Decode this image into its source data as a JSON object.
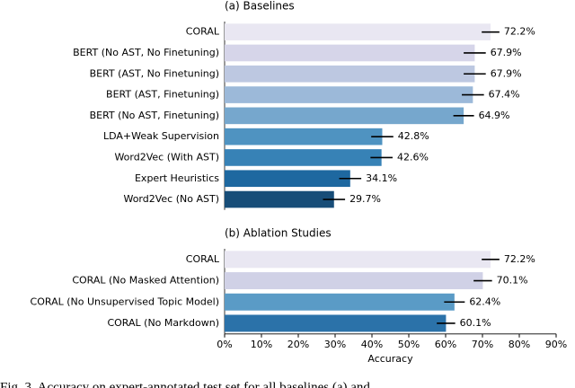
{
  "chart_data": [
    {
      "type": "hbar",
      "title": "(a) Baselines",
      "categories": [
        "CORAL",
        "BERT (No AST, No Finetuning)",
        "BERT (AST, No Finetuning)",
        "BERT (AST, Finetuning)",
        "BERT (No AST, Finetuning)",
        "LDA+Weak Supervision",
        "Word2Vec (With AST)",
        "Expert Heuristics",
        "Word2Vec (No AST)"
      ],
      "values": [
        72.2,
        67.9,
        67.9,
        67.4,
        64.9,
        42.8,
        42.6,
        34.1,
        29.7
      ],
      "value_labels": [
        "72.2%",
        "67.9%",
        "67.9%",
        "67.4%",
        "64.9%",
        "42.8%",
        "42.6%",
        "34.1%",
        "29.7%"
      ],
      "errors": [
        2.4,
        3,
        3,
        3,
        2.8,
        3,
        3,
        3,
        3
      ],
      "colors": [
        "#e9e7f2",
        "#d6d5e9",
        "#bdc8e1",
        "#9cb9d9",
        "#76a7cd",
        "#4f93c1",
        "#3782b6",
        "#1e68a0",
        "#174d78"
      ],
      "xlim": [
        0,
        90
      ]
    },
    {
      "type": "hbar",
      "title": "(b) Ablation Studies",
      "categories": [
        "CORAL",
        "CORAL (No Masked Attention)",
        "CORAL (No Unsupervised Topic Model)",
        "CORAL (No Markdown)"
      ],
      "values": [
        72.2,
        70.1,
        62.4,
        60.1
      ],
      "value_labels": [
        "72.2%",
        "70.1%",
        "62.4%",
        "60.1%"
      ],
      "errors": [
        2.4,
        2.5,
        2.8,
        2.5
      ],
      "colors": [
        "#e9e7f2",
        "#d0d1e6",
        "#5a9bc6",
        "#2b72a9"
      ],
      "xlim": [
        0,
        90
      ],
      "xticks": [
        {
          "value": 0,
          "label": "0%"
        },
        {
          "value": 10,
          "label": "10%"
        },
        {
          "value": 20,
          "label": "20%"
        },
        {
          "value": 30,
          "label": "30%"
        },
        {
          "value": 40,
          "label": "40%"
        },
        {
          "value": 50,
          "label": "50%"
        },
        {
          "value": 60,
          "label": "60%"
        },
        {
          "value": 70,
          "label": "70%"
        },
        {
          "value": 80,
          "label": "80%"
        },
        {
          "value": 90,
          "label": "90%"
        }
      ],
      "xlabel": "Accuracy"
    }
  ],
  "caption": "Fig. 3.   Accuracy on expert-annotated test set for all baselines (a) and"
}
